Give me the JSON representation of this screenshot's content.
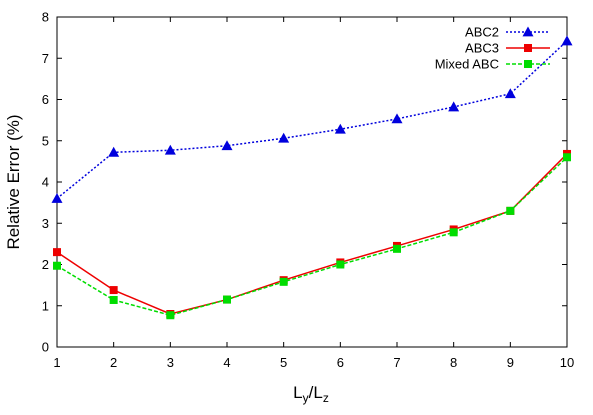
{
  "chart_data": {
    "type": "line",
    "title": "",
    "xlabel": "L",
    "xlabel_sub1": "y",
    "xlabel_sep": "/L",
    "xlabel_sub2": "z",
    "ylabel": "Relative Error (%)",
    "x": [
      1,
      2,
      3,
      4,
      5,
      6,
      7,
      8,
      9,
      10
    ],
    "xlim": [
      1,
      10
    ],
    "ylim": [
      0,
      8
    ],
    "xticks": [
      "1",
      "2",
      "3",
      "4",
      "5",
      "6",
      "7",
      "8",
      "9",
      "10"
    ],
    "yticks": [
      "0",
      "1",
      "2",
      "3",
      "4",
      "5",
      "6",
      "7",
      "8"
    ],
    "grid": false,
    "legend_position": "top-right",
    "series": [
      {
        "name": "ABC2",
        "values": [
          3.6,
          4.72,
          4.77,
          4.88,
          5.06,
          5.28,
          5.53,
          5.82,
          6.14,
          7.42
        ],
        "color": "#0000dd",
        "marker": "triangle",
        "line": "dotted"
      },
      {
        "name": "ABC3",
        "values": [
          2.3,
          1.38,
          0.8,
          1.15,
          1.62,
          2.05,
          2.45,
          2.85,
          3.3,
          4.68
        ],
        "color": "#ee0000",
        "marker": "square",
        "line": "solid"
      },
      {
        "name": "Mixed ABC",
        "values": [
          1.97,
          1.14,
          0.77,
          1.15,
          1.58,
          2.0,
          2.38,
          2.78,
          3.3,
          4.6
        ],
        "color": "#00dd00",
        "marker": "square",
        "line": "dashed"
      }
    ]
  }
}
